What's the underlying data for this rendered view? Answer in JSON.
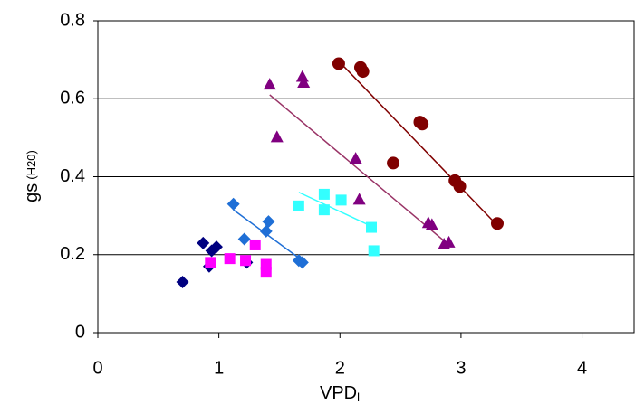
{
  "chart_data": {
    "type": "scatter",
    "xlabel": "VPD",
    "xlabel_sub": "l",
    "ylabel": "gs",
    "ylabel_sub": "(H20)",
    "xlim": [
      0,
      4.43
    ],
    "xticks": [
      0,
      1,
      2,
      3,
      4
    ],
    "ylim": [
      0,
      0.8
    ],
    "yticks": [
      0,
      0.2,
      0.4,
      0.6,
      0.8
    ],
    "grid": true,
    "series": [
      {
        "marker": "diamond",
        "color": "#000080",
        "x": [
          0.7,
          0.87,
          0.92,
          0.94,
          0.98,
          1.23
        ],
        "values": [
          0.13,
          0.23,
          0.17,
          0.21,
          0.22,
          0.18
        ]
      },
      {
        "marker": "diamond",
        "color": "#1f6fd6",
        "x": [
          1.12,
          1.41,
          1.39,
          1.21,
          1.66,
          1.69
        ],
        "values": [
          0.33,
          0.285,
          0.26,
          0.24,
          0.185,
          0.18
        ]
      },
      {
        "marker": "square",
        "color": "#ff00ff",
        "x": [
          0.93,
          1.09,
          1.22,
          1.3,
          1.39,
          1.39
        ],
        "values": [
          0.18,
          0.19,
          0.185,
          0.225,
          0.175,
          0.155
        ]
      },
      {
        "marker": "square",
        "color": "#33ffff",
        "x": [
          1.66,
          1.87,
          1.87,
          2.01,
          2.26,
          2.28
        ],
        "values": [
          0.325,
          0.355,
          0.315,
          0.34,
          0.27,
          0.21
        ]
      },
      {
        "marker": "triangle",
        "color": "#800080",
        "x": [
          1.42,
          1.48,
          1.69,
          1.7,
          2.13,
          2.16,
          2.73,
          2.76,
          2.86,
          2.9
        ],
        "values": [
          0.635,
          0.5,
          0.655,
          0.64,
          0.445,
          0.34,
          0.28,
          0.275,
          0.225,
          0.23
        ]
      },
      {
        "marker": "circle",
        "color": "#800000",
        "x": [
          1.99,
          2.17,
          2.19,
          2.44,
          2.66,
          2.68,
          2.95,
          2.99,
          3.3
        ],
        "values": [
          0.69,
          0.68,
          0.67,
          0.435,
          0.54,
          0.535,
          0.39,
          0.375,
          0.28
        ]
      }
    ],
    "trendlines": [
      {
        "color": "#1f6fd6",
        "x": [
          1.12,
          1.69
        ],
        "values": [
          0.315,
          0.185
        ]
      },
      {
        "color": "#33ffff",
        "x": [
          1.66,
          2.28
        ],
        "values": [
          0.36,
          0.27
        ]
      },
      {
        "color": "#993366",
        "x": [
          1.42,
          2.9
        ],
        "values": [
          0.61,
          0.225
        ]
      },
      {
        "color": "#800000",
        "x": [
          2.01,
          3.3
        ],
        "values": [
          0.69,
          0.275
        ]
      }
    ]
  }
}
